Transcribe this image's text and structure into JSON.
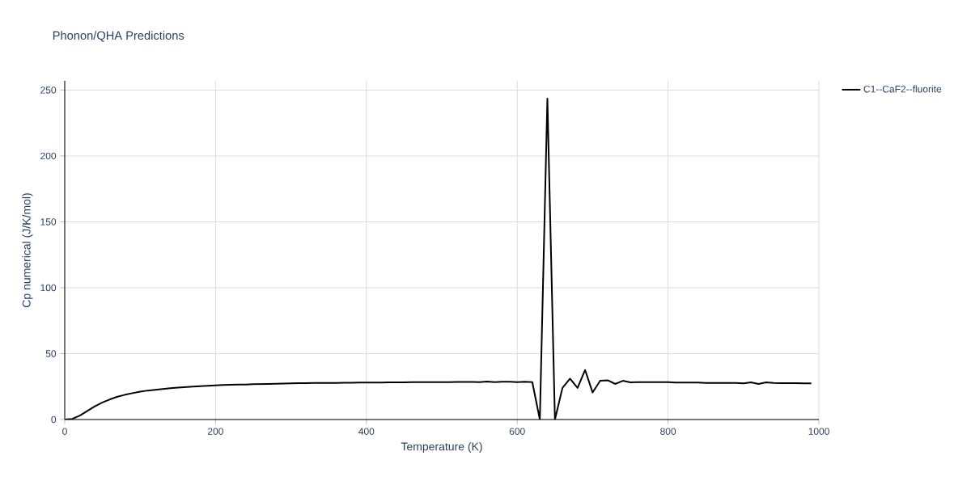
{
  "chart_data": {
    "type": "line",
    "title": "Phonon/QHA Predictions",
    "xlabel": "Temperature (K)",
    "ylabel": "Cp numerical (J/K/mol)",
    "x": [
      0,
      10,
      20,
      30,
      40,
      50,
      60,
      70,
      80,
      90,
      100,
      110,
      120,
      130,
      140,
      150,
      160,
      170,
      180,
      190,
      200,
      210,
      220,
      230,
      240,
      250,
      260,
      270,
      280,
      290,
      300,
      310,
      320,
      330,
      340,
      350,
      360,
      370,
      380,
      390,
      400,
      410,
      420,
      430,
      440,
      450,
      460,
      470,
      480,
      490,
      500,
      510,
      520,
      530,
      540,
      550,
      560,
      570,
      580,
      590,
      600,
      610,
      620,
      630,
      640,
      650,
      660,
      670,
      680,
      690,
      700,
      710,
      720,
      730,
      740,
      750,
      760,
      770,
      780,
      790,
      800,
      810,
      820,
      830,
      840,
      850,
      860,
      870,
      880,
      890,
      900,
      910,
      920,
      930,
      940,
      950,
      960,
      970,
      980,
      990
    ],
    "series": [
      {
        "name": "C1--CaF2--fluorite",
        "color": "#000000",
        "values": [
          0,
          0.5,
          3,
          6.5,
          10,
          13,
          15.3,
          17.3,
          18.8,
          20,
          21.2,
          22,
          22.6,
          23.2,
          23.8,
          24.2,
          24.6,
          25,
          25.3,
          25.6,
          25.9,
          26.2,
          26.4,
          26.5,
          26.6,
          26.8,
          26.9,
          27,
          27.2,
          27.3,
          27.5,
          27.6,
          27.6,
          27.7,
          27.7,
          27.8,
          27.8,
          27.9,
          27.9,
          28,
          28,
          28.1,
          28.1,
          28.2,
          28.2,
          28.2,
          28.3,
          28.3,
          28.3,
          28.4,
          28.4,
          28.4,
          28.5,
          28.5,
          28.5,
          28.3,
          28.8,
          28.4,
          28.6,
          28.7,
          28.3,
          28.6,
          28.4,
          0,
          243.5,
          0,
          24,
          31,
          24,
          37.6,
          20.5,
          29.4,
          29.8,
          27,
          29.4,
          28.2,
          28.3,
          28.3,
          28.3,
          28.3,
          28.3,
          28,
          28,
          28,
          28,
          27.8,
          27.8,
          27.8,
          27.8,
          27.8,
          27.5,
          28.2,
          27,
          28.2,
          27.7,
          27.6,
          27.6,
          27.6,
          27.5,
          27.5
        ]
      }
    ],
    "xlim": [
      0,
      1000
    ],
    "ylim": [
      0,
      257
    ],
    "xticks": [
      0,
      200,
      400,
      600,
      800,
      1000
    ],
    "yticks": [
      0,
      50,
      100,
      150,
      200,
      250
    ],
    "grid": true,
    "legend": "top right",
    "marker": "none",
    "line_style": "solid"
  }
}
